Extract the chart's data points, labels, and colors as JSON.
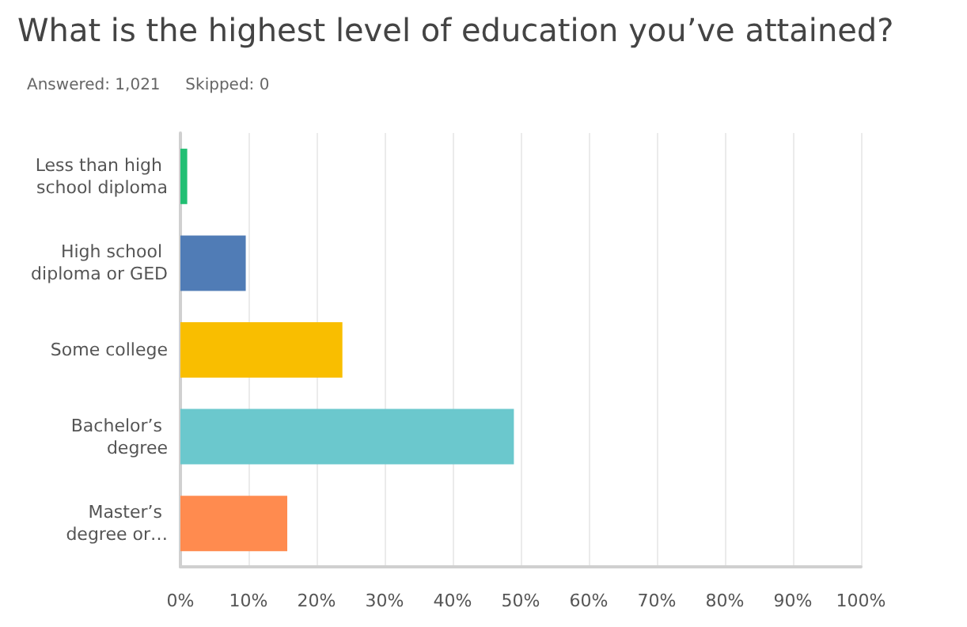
{
  "chart_data": {
    "type": "bar",
    "orientation": "horizontal",
    "title": "What is the highest level of education you’ve attained?",
    "subtitle": "Answered: 1,021     Skipped: 0",
    "categories": [
      "Less than high school diploma",
      "High school diploma or GED",
      "Some college",
      "Bachelor’s degree",
      "Master’s degree or…"
    ],
    "values": [
      1,
      9.6,
      23.8,
      49,
      15.7
    ],
    "colors": [
      "#21bf73",
      "#507cb6",
      "#f9be00",
      "#6bc8cd",
      "#ff8b4f"
    ],
    "xlim": [
      0,
      100
    ],
    "xticks": [
      {
        "value": 0,
        "label": "0%"
      },
      {
        "value": 10,
        "label": "10%"
      },
      {
        "value": 20,
        "label": "20%"
      },
      {
        "value": 30,
        "label": "30%"
      },
      {
        "value": 40,
        "label": "40%"
      },
      {
        "value": 50,
        "label": "50%"
      },
      {
        "value": 60,
        "label": "60%"
      },
      {
        "value": 70,
        "label": "70%"
      },
      {
        "value": 80,
        "label": "80%"
      },
      {
        "value": 90,
        "label": "90%"
      },
      {
        "value": 100,
        "label": "100%"
      }
    ],
    "grid": "x"
  }
}
